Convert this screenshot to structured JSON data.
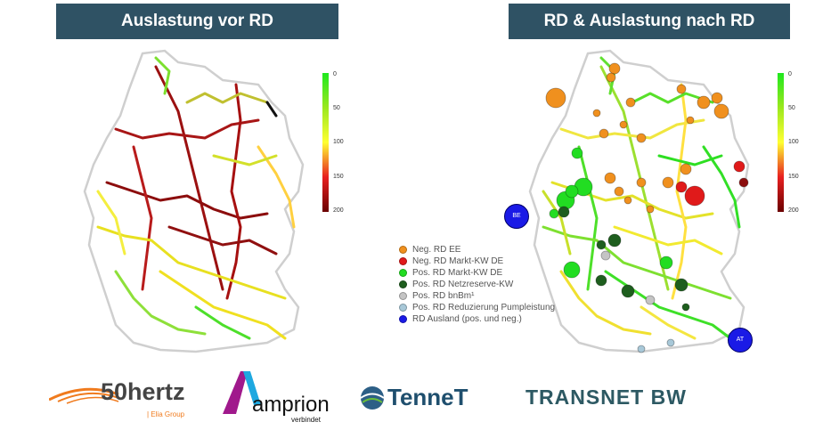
{
  "header": {
    "left_title": "Auslastung vor RD",
    "right_title": "RD & Auslastung nach RD"
  },
  "scale": {
    "ticks": [
      "0",
      "50",
      "100",
      "150",
      "200"
    ],
    "colors": [
      "#1ee81e",
      "#9be81e",
      "#ffff32",
      "#e82020",
      "#6a0000"
    ]
  },
  "legend": {
    "items": [
      {
        "label": "Neg. RD EE",
        "color": "#f0901e"
      },
      {
        "label": "Neg. RD Markt-KW DE",
        "color": "#e01a1a"
      },
      {
        "label": "Pos. RD Markt-KW DE",
        "color": "#22dd22"
      },
      {
        "label": "Pos. RD Netzreserve-KW",
        "color": "#1e5e1e"
      },
      {
        "label": "Pos. RD bnBm¹",
        "color": "#c4c4c4"
      },
      {
        "label": "Pos. RD Reduzierung Pumpleistung",
        "color": "#a8c8d8"
      },
      {
        "label": "RD Ausland (pos. und neg.)",
        "color": "#1a1ae6"
      }
    ]
  },
  "map_labels": {
    "be": "BE",
    "at": "AT"
  },
  "logos": {
    "hertz_main": "50hertz",
    "hertz_sub": "| Elia Group",
    "amprion_main": "amprion",
    "amprion_sub": "verbindet",
    "tennet": "TenneT",
    "transnet": "TRANSNET BW"
  }
}
